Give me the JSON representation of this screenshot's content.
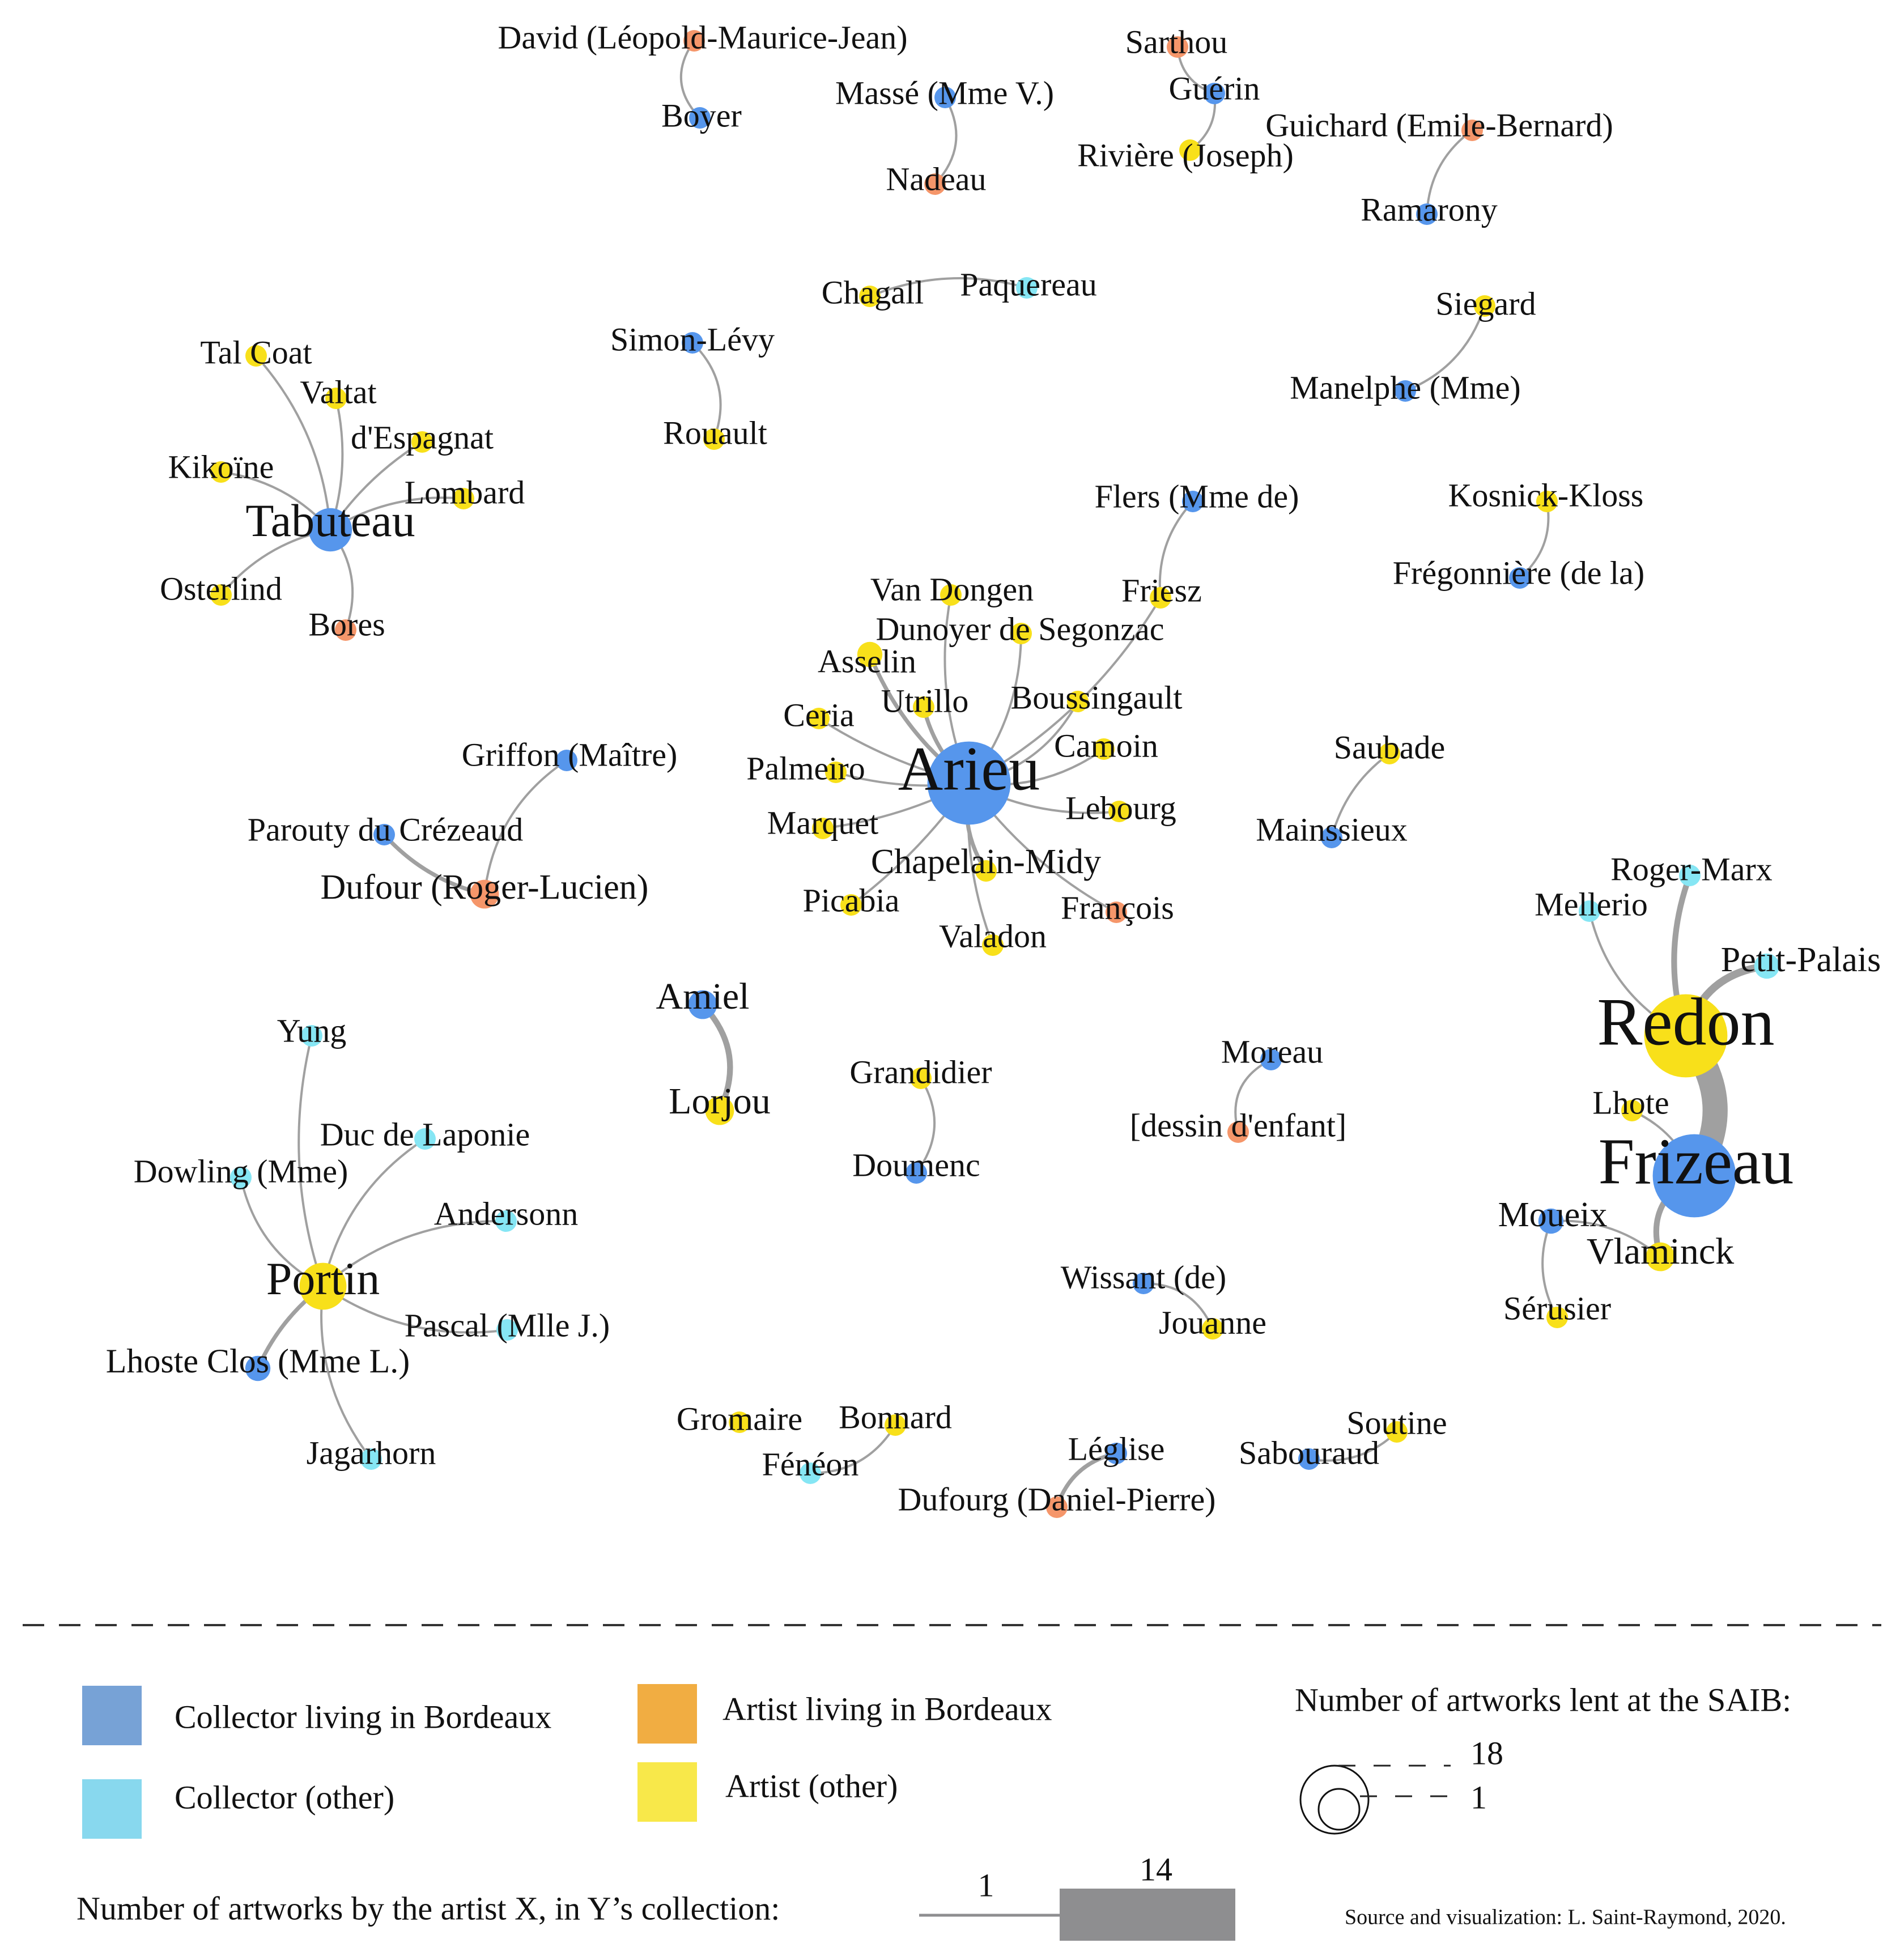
{
  "colors": {
    "collector_bordeaux": "#5696ec",
    "collector_other": "#86e6f4",
    "artist_bordeaux": "#f5966a",
    "artist_other": "#f8e01a",
    "edge": "#a0a0a0",
    "legend_collector_bordeaux": "#77a2d6",
    "legend_collector_other": "#88d8ee",
    "legend_artist_bordeaux": "#f1ad42",
    "legend_artist_other": "#f8e84a",
    "legend_edge": "#8e8e90"
  },
  "nodes": [
    {
      "id": "david",
      "label": "David (Léopold-Maurice-Jean)",
      "type": "artist_bordeaux",
      "size": 1
    },
    {
      "id": "boyer",
      "label": "Boyer",
      "type": "collector_bordeaux",
      "size": 1
    },
    {
      "id": "masse",
      "label": "Massé (Mme V.)",
      "type": "collector_bordeaux",
      "size": 1
    },
    {
      "id": "nadeau",
      "label": "Nadeau",
      "type": "artist_bordeaux",
      "size": 1
    },
    {
      "id": "sarthou",
      "label": "Sarthou",
      "type": "artist_bordeaux",
      "size": 1
    },
    {
      "id": "guerin",
      "label": "Guérin",
      "type": "collector_bordeaux",
      "size": 1
    },
    {
      "id": "riviere",
      "label": "Rivière (Joseph)",
      "type": "artist_other",
      "size": 1
    },
    {
      "id": "guichard",
      "label": "Guichard (Emile-Bernard)",
      "type": "artist_bordeaux",
      "size": 1
    },
    {
      "id": "ramarony",
      "label": "Ramarony",
      "type": "collector_bordeaux",
      "size": 1
    },
    {
      "id": "chagall",
      "label": "Chagall",
      "type": "artist_other",
      "size": 1
    },
    {
      "id": "paquereau",
      "label": "Paquereau",
      "type": "collector_other",
      "size": 1
    },
    {
      "id": "siegard",
      "label": "Siegard",
      "type": "artist_other",
      "size": 1
    },
    {
      "id": "manelphe",
      "label": "Manelphe (Mme)",
      "type": "collector_bordeaux",
      "size": 1
    },
    {
      "id": "simonlevy",
      "label": "Simon-Lévy",
      "type": "collector_bordeaux",
      "size": 1
    },
    {
      "id": "rouault",
      "label": "Rouault",
      "type": "artist_other",
      "size": 1
    },
    {
      "id": "talcoat",
      "label": "Tal Coat",
      "type": "artist_other",
      "size": 1
    },
    {
      "id": "valtat",
      "label": "Valtat",
      "type": "artist_other",
      "size": 1
    },
    {
      "id": "despagnat",
      "label": "d'Espagnat",
      "type": "artist_other",
      "size": 1
    },
    {
      "id": "kikoine",
      "label": "Kikoïne",
      "type": "artist_other",
      "size": 1
    },
    {
      "id": "lombard",
      "label": "Lombard",
      "type": "artist_other",
      "size": 1
    },
    {
      "id": "tabuteau",
      "label": "Tabuteau",
      "type": "collector_bordeaux",
      "size": 7
    },
    {
      "id": "osterlind",
      "label": "Osterlind",
      "type": "artist_other",
      "size": 1
    },
    {
      "id": "bores",
      "label": "Bores",
      "type": "artist_bordeaux",
      "size": 1
    },
    {
      "id": "flers",
      "label": "Flers (Mme de)",
      "type": "collector_bordeaux",
      "size": 1
    },
    {
      "id": "kosnick",
      "label": "Kosnick-Kloss",
      "type": "artist_other",
      "size": 1
    },
    {
      "id": "fregonniere",
      "label": "Frégonnière (de la)",
      "type": "collector_bordeaux",
      "size": 1
    },
    {
      "id": "friesz",
      "label": "Friesz",
      "type": "artist_other",
      "size": 1
    },
    {
      "id": "vandongen",
      "label": "Van Dongen",
      "type": "artist_other",
      "size": 1
    },
    {
      "id": "dunoyer",
      "label": "Dunoyer de Segonzac",
      "type": "artist_other",
      "size": 1
    },
    {
      "id": "asselin",
      "label": "Asselin",
      "type": "artist_other",
      "size": 2
    },
    {
      "id": "utrillo",
      "label": "Utrillo",
      "type": "artist_other",
      "size": 1
    },
    {
      "id": "boussingault",
      "label": "Boussingault",
      "type": "artist_other",
      "size": 1
    },
    {
      "id": "ceria",
      "label": "Ceria",
      "type": "artist_other",
      "size": 1
    },
    {
      "id": "camoin",
      "label": "Camoin",
      "type": "artist_other",
      "size": 1
    },
    {
      "id": "arieu",
      "label": "Arieu",
      "type": "collector_bordeaux",
      "size": 18
    },
    {
      "id": "palmeiro",
      "label": "Palmeiro",
      "type": "artist_other",
      "size": 1
    },
    {
      "id": "lebourg",
      "label": "Lebourg",
      "type": "artist_other",
      "size": 1
    },
    {
      "id": "marquet",
      "label": "Marquet",
      "type": "artist_other",
      "size": 1
    },
    {
      "id": "chapelain",
      "label": "Chapelain-Midy",
      "type": "artist_other",
      "size": 1
    },
    {
      "id": "picabia",
      "label": "Picabia",
      "type": "artist_other",
      "size": 1
    },
    {
      "id": "francois",
      "label": "François",
      "type": "artist_bordeaux",
      "size": 1
    },
    {
      "id": "valadon",
      "label": "Valadon",
      "type": "artist_other",
      "size": 1
    },
    {
      "id": "saubade",
      "label": "Saubade",
      "type": "artist_other",
      "size": 1
    },
    {
      "id": "mainssieux",
      "label": "Mainssieux",
      "type": "collector_bordeaux",
      "size": 1
    },
    {
      "id": "griffon",
      "label": "Griffon (Maître)",
      "type": "collector_bordeaux",
      "size": 1
    },
    {
      "id": "parouty",
      "label": "Parouty du Crézeaud",
      "type": "collector_bordeaux",
      "size": 1
    },
    {
      "id": "dufour",
      "label": "Dufour (Roger-Lucien)",
      "type": "artist_bordeaux",
      "size": 3
    },
    {
      "id": "rogermarx",
      "label": "Roger-Marx",
      "type": "collector_other",
      "size": 1
    },
    {
      "id": "mellerio",
      "label": "Mellerio",
      "type": "collector_other",
      "size": 1
    },
    {
      "id": "petitpalais",
      "label": "Petit-Palais",
      "type": "collector_other",
      "size": 2
    },
    {
      "id": "redon",
      "label": "Redon",
      "type": "artist_other",
      "size": 18
    },
    {
      "id": "lhote",
      "label": "Lhote",
      "type": "artist_other",
      "size": 1
    },
    {
      "id": "frizeau",
      "label": "Frizeau",
      "type": "collector_bordeaux",
      "size": 18
    },
    {
      "id": "moueix",
      "label": "Moueix",
      "type": "collector_bordeaux",
      "size": 2
    },
    {
      "id": "vlaminck",
      "label": "Vlaminck",
      "type": "artist_other",
      "size": 3
    },
    {
      "id": "serusier",
      "label": "Sérusier",
      "type": "artist_other",
      "size": 1
    },
    {
      "id": "amiel",
      "label": "Amiel",
      "type": "collector_bordeaux",
      "size": 3
    },
    {
      "id": "lorjou",
      "label": "Lorjou",
      "type": "artist_other",
      "size": 3
    },
    {
      "id": "grandidier",
      "label": "Grandidier",
      "type": "artist_other",
      "size": 1
    },
    {
      "id": "doumenc",
      "label": "Doumenc",
      "type": "collector_bordeaux",
      "size": 1
    },
    {
      "id": "moreau",
      "label": "Moreau",
      "type": "collector_bordeaux",
      "size": 1
    },
    {
      "id": "dessin",
      "label": "[dessin d'enfant]",
      "type": "artist_bordeaux",
      "size": 1
    },
    {
      "id": "yung",
      "label": "Yung",
      "type": "collector_other",
      "size": 1
    },
    {
      "id": "duclaponie",
      "label": "Duc de Laponie",
      "type": "collector_other",
      "size": 1
    },
    {
      "id": "dowling",
      "label": "Dowling (Mme)",
      "type": "collector_other",
      "size": 1
    },
    {
      "id": "andersonn",
      "label": "Andersonn",
      "type": "collector_other",
      "size": 1
    },
    {
      "id": "portin",
      "label": "Portin",
      "type": "artist_other",
      "size": 8
    },
    {
      "id": "pascal",
      "label": "Pascal (Mlle J.)",
      "type": "collector_other",
      "size": 1
    },
    {
      "id": "lhosteclos",
      "label": "Lhoste Clos (Mme L.)",
      "type": "collector_bordeaux",
      "size": 2
    },
    {
      "id": "jagarhorn",
      "label": "Jagarhorn",
      "type": "collector_other",
      "size": 1
    },
    {
      "id": "wissant",
      "label": "Wissant (de)",
      "type": "collector_bordeaux",
      "size": 1
    },
    {
      "id": "jouanne",
      "label": "Jouanne",
      "type": "artist_other",
      "size": 1
    },
    {
      "id": "gromaire",
      "label": "Gromaire",
      "type": "artist_other",
      "size": 1
    },
    {
      "id": "bonnard",
      "label": "Bonnard",
      "type": "artist_other",
      "size": 1
    },
    {
      "id": "feneon",
      "label": "Fénéon",
      "type": "collector_other",
      "size": 1
    },
    {
      "id": "leglise",
      "label": "Léglise",
      "type": "collector_bordeaux",
      "size": 1
    },
    {
      "id": "dufourg",
      "label": "Dufourg (Daniel-Pierre)",
      "type": "artist_bordeaux",
      "size": 1
    },
    {
      "id": "sabouraud",
      "label": "Sabouraud",
      "type": "collector_bordeaux",
      "size": 1
    },
    {
      "id": "soutine",
      "label": "Soutine",
      "type": "artist_other",
      "size": 1
    }
  ],
  "edges": [
    {
      "source": "david",
      "target": "boyer",
      "weight": 1
    },
    {
      "source": "masse",
      "target": "nadeau",
      "weight": 1
    },
    {
      "source": "sarthou",
      "target": "guerin",
      "weight": 1
    },
    {
      "source": "guerin",
      "target": "riviere",
      "weight": 1
    },
    {
      "source": "guichard",
      "target": "ramarony",
      "weight": 1
    },
    {
      "source": "chagall",
      "target": "paquereau",
      "weight": 1
    },
    {
      "source": "siegard",
      "target": "manelphe",
      "weight": 1
    },
    {
      "source": "simonlevy",
      "target": "rouault",
      "weight": 1
    },
    {
      "source": "talcoat",
      "target": "tabuteau",
      "weight": 1
    },
    {
      "source": "valtat",
      "target": "tabuteau",
      "weight": 1
    },
    {
      "source": "despagnat",
      "target": "tabuteau",
      "weight": 1
    },
    {
      "source": "kikoine",
      "target": "tabuteau",
      "weight": 1
    },
    {
      "source": "lombard",
      "target": "tabuteau",
      "weight": 1
    },
    {
      "source": "osterlind",
      "target": "tabuteau",
      "weight": 1
    },
    {
      "source": "bores",
      "target": "tabuteau",
      "weight": 1
    },
    {
      "source": "flers",
      "target": "friesz",
      "weight": 1
    },
    {
      "source": "kosnick",
      "target": "fregonniere",
      "weight": 1
    },
    {
      "source": "friesz",
      "target": "arieu",
      "weight": 1
    },
    {
      "source": "vandongen",
      "target": "arieu",
      "weight": 1
    },
    {
      "source": "dunoyer",
      "target": "arieu",
      "weight": 1
    },
    {
      "source": "asselin",
      "target": "arieu",
      "weight": 2
    },
    {
      "source": "utrillo",
      "target": "arieu",
      "weight": 2
    },
    {
      "source": "boussingault",
      "target": "arieu",
      "weight": 1
    },
    {
      "source": "ceria",
      "target": "arieu",
      "weight": 1
    },
    {
      "source": "camoin",
      "target": "arieu",
      "weight": 1
    },
    {
      "source": "palmeiro",
      "target": "arieu",
      "weight": 1
    },
    {
      "source": "lebourg",
      "target": "arieu",
      "weight": 1
    },
    {
      "source": "marquet",
      "target": "arieu",
      "weight": 1
    },
    {
      "source": "chapelain",
      "target": "arieu",
      "weight": 2
    },
    {
      "source": "picabia",
      "target": "arieu",
      "weight": 1
    },
    {
      "source": "francois",
      "target": "arieu",
      "weight": 1
    },
    {
      "source": "valadon",
      "target": "arieu",
      "weight": 1
    },
    {
      "source": "saubade",
      "target": "mainssieux",
      "weight": 1
    },
    {
      "source": "griffon",
      "target": "dufour",
      "weight": 1
    },
    {
      "source": "parouty",
      "target": "dufour",
      "weight": 2
    },
    {
      "source": "rogermarx",
      "target": "redon",
      "weight": 3
    },
    {
      "source": "mellerio",
      "target": "redon",
      "weight": 1
    },
    {
      "source": "petitpalais",
      "target": "redon",
      "weight": 4
    },
    {
      "source": "redon",
      "target": "frizeau",
      "weight": 14
    },
    {
      "source": "lhote",
      "target": "frizeau",
      "weight": 1
    },
    {
      "source": "frizeau",
      "target": "vlaminck",
      "weight": 3
    },
    {
      "source": "moueix",
      "target": "vlaminck",
      "weight": 1
    },
    {
      "source": "moueix",
      "target": "serusier",
      "weight": 1
    },
    {
      "source": "amiel",
      "target": "lorjou",
      "weight": 3
    },
    {
      "source": "grandidier",
      "target": "doumenc",
      "weight": 1
    },
    {
      "source": "moreau",
      "target": "dessin",
      "weight": 1
    },
    {
      "source": "yung",
      "target": "portin",
      "weight": 1
    },
    {
      "source": "duclaponie",
      "target": "portin",
      "weight": 1
    },
    {
      "source": "dowling",
      "target": "portin",
      "weight": 1
    },
    {
      "source": "andersonn",
      "target": "portin",
      "weight": 1
    },
    {
      "source": "pascal",
      "target": "portin",
      "weight": 1
    },
    {
      "source": "lhosteclos",
      "target": "portin",
      "weight": 2
    },
    {
      "source": "jagarhorn",
      "target": "portin",
      "weight": 1
    },
    {
      "source": "wissant",
      "target": "jouanne",
      "weight": 1
    },
    {
      "source": "bonnard",
      "target": "feneon",
      "weight": 1
    },
    {
      "source": "leglise",
      "target": "dufourg",
      "weight": 2
    },
    {
      "source": "sabouraud",
      "target": "soutine",
      "weight": 1
    }
  ],
  "legend": {
    "collector_bordeaux": "Collector living in Bordeaux",
    "collector_other": "Collector (other)",
    "artist_bordeaux": "Artist living in Bordeaux",
    "artist_other": "Artist (other)",
    "size_title": "Number of artworks lent at the SAIB:",
    "size_max": "18",
    "size_min": "1",
    "edge_title": "Number of artworks by the artist X, in Y’s collection:",
    "edge_min": "1",
    "edge_max": "14"
  },
  "source_note": "Source and visualization: L. Saint-Raymond, 2020."
}
